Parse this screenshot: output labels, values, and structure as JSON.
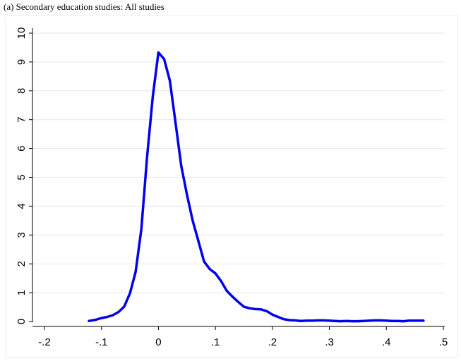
{
  "chart_data": {
    "type": "line",
    "title": "(a) Secondary education studies: All studies",
    "xlabel": "",
    "ylabel": "",
    "xlim": [
      -0.2,
      0.5
    ],
    "ylim": [
      0,
      10
    ],
    "x_ticks": [
      -0.2,
      -0.1,
      0,
      0.1,
      0.2,
      0.3,
      0.4,
      0.5
    ],
    "x_tick_labels": [
      "-.2",
      "-.1",
      "0",
      ".1",
      ".2",
      ".3",
      ".4",
      ".5"
    ],
    "y_ticks": [
      0,
      1,
      2,
      3,
      4,
      5,
      6,
      7,
      8,
      9,
      10
    ],
    "y_tick_labels": [
      "0",
      "1",
      "2",
      "3",
      "4",
      "5",
      "6",
      "7",
      "8",
      "9",
      "10"
    ],
    "grid": true,
    "series": [
      {
        "color": "#0000ee",
        "x": [
          -0.122,
          -0.11,
          -0.1,
          -0.09,
          -0.08,
          -0.07,
          -0.06,
          -0.05,
          -0.04,
          -0.03,
          -0.02,
          -0.01,
          0.0,
          0.01,
          0.02,
          0.03,
          0.04,
          0.05,
          0.06,
          0.07,
          0.08,
          0.09,
          0.1,
          0.11,
          0.12,
          0.13,
          0.14,
          0.15,
          0.16,
          0.17,
          0.18,
          0.19,
          0.2,
          0.21,
          0.22,
          0.23,
          0.24,
          0.25,
          0.26,
          0.27,
          0.28,
          0.29,
          0.3,
          0.31,
          0.32,
          0.33,
          0.34,
          0.35,
          0.36,
          0.37,
          0.38,
          0.39,
          0.4,
          0.41,
          0.42,
          0.43,
          0.44,
          0.45,
          0.465
        ],
        "y": [
          0.02,
          0.06,
          0.12,
          0.16,
          0.22,
          0.33,
          0.52,
          0.98,
          1.72,
          3.2,
          5.7,
          7.8,
          9.33,
          9.1,
          8.35,
          6.9,
          5.4,
          4.4,
          3.5,
          2.8,
          2.08,
          1.82,
          1.67,
          1.4,
          1.06,
          0.86,
          0.68,
          0.51,
          0.46,
          0.43,
          0.42,
          0.36,
          0.24,
          0.16,
          0.08,
          0.05,
          0.04,
          0.02,
          0.03,
          0.03,
          0.04,
          0.04,
          0.03,
          0.02,
          0.01,
          0.02,
          0.01,
          0.01,
          0.02,
          0.03,
          0.04,
          0.04,
          0.03,
          0.02,
          0.02,
          0.01,
          0.03,
          0.03,
          0.03
        ]
      }
    ]
  }
}
